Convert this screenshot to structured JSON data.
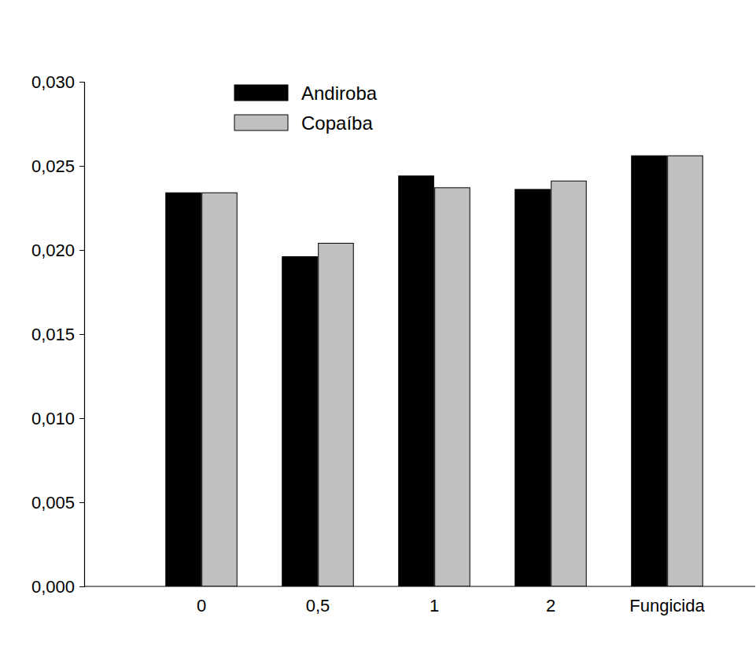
{
  "chart_data": {
    "type": "bar",
    "categories": [
      "0",
      "0,5",
      "1",
      "2",
      "Fungicida"
    ],
    "series": [
      {
        "name": "Andiroba",
        "color": "#000000",
        "values": [
          0.0234,
          0.0196,
          0.0244,
          0.0236,
          0.0256
        ]
      },
      {
        "name": "Copaíba",
        "color": "#c0c0c0",
        "values": [
          0.0234,
          0.0204,
          0.0237,
          0.0241,
          0.0256
        ]
      }
    ],
    "ylim": [
      0,
      0.03
    ],
    "yticks": [
      {
        "value": 0,
        "label": "0,000"
      },
      {
        "value": 0.005,
        "label": "0,005"
      },
      {
        "value": 0.01,
        "label": "0,010"
      },
      {
        "value": 0.015,
        "label": "0,015"
      },
      {
        "value": 0.02,
        "label": "0,020"
      },
      {
        "value": 0.025,
        "label": "0,025"
      },
      {
        "value": 0.03,
        "label": "0,030"
      }
    ],
    "grid": false,
    "legend": "top-left"
  }
}
